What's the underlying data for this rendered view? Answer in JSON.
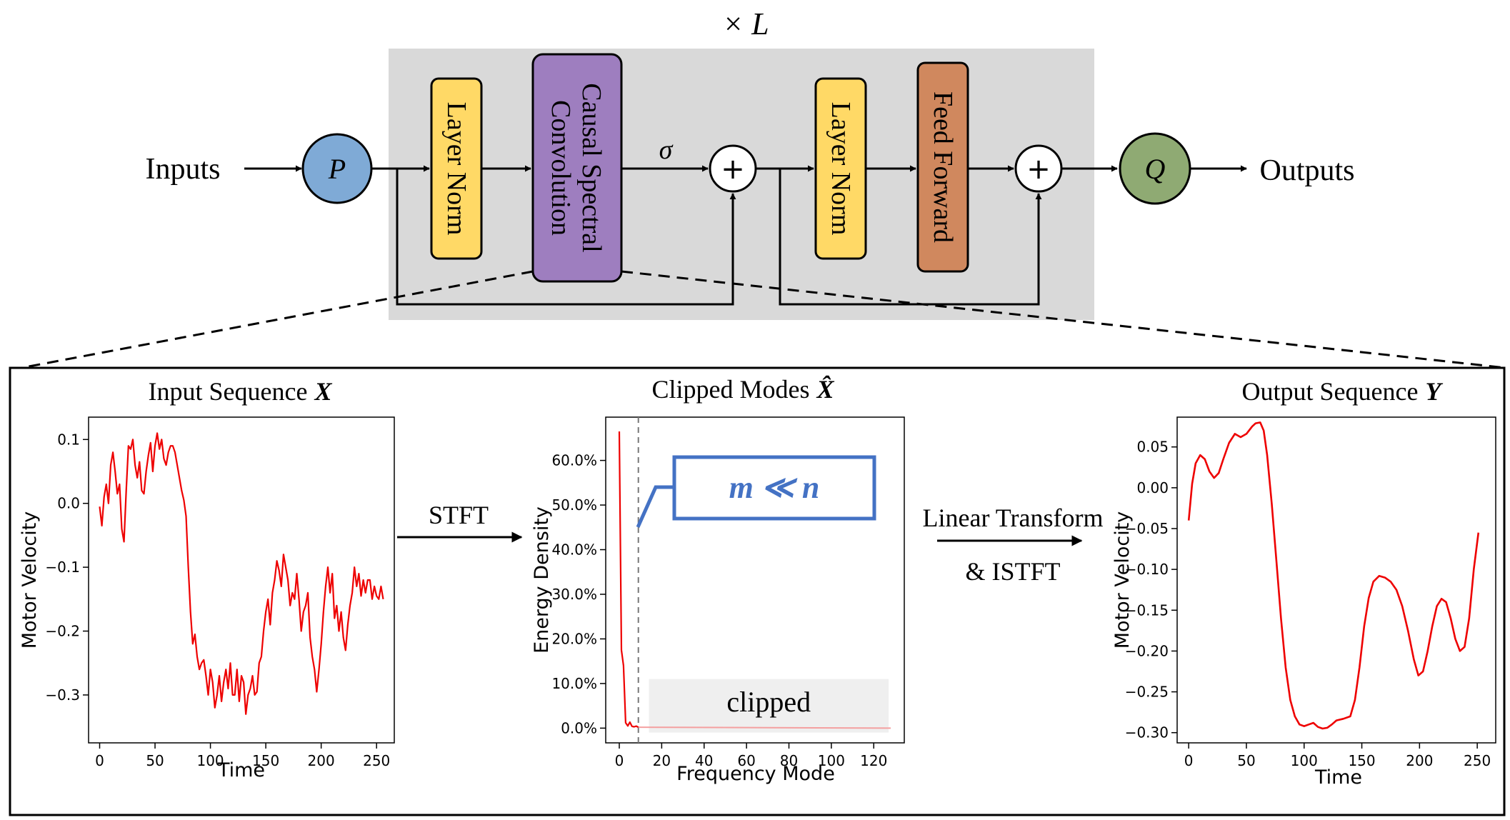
{
  "top": {
    "repeat_label": "× L",
    "inputs_label": "Inputs",
    "outputs_label": "Outputs",
    "p_label": "P",
    "q_label": "Q",
    "sigma_label": "σ",
    "plus_label": "+",
    "layer_norm_1": "Layer Norm",
    "causal_line1": "Causal Spectral",
    "causal_line2": "Convolution",
    "layer_norm_2": "Layer Norm",
    "feed_forward": "Feed Forward"
  },
  "colors": {
    "block_bg": "#d9d9d9",
    "p_fill": "#7faad6",
    "q_fill": "#8faa73",
    "layer_norm": "#ffd966",
    "causal": "#9e7ebf",
    "feed_forward": "#d0885e",
    "curve": "#ee0000",
    "annot_blue": "#4472c4"
  },
  "bottom": {
    "stft_label": "STFT",
    "lin_line1": "Linear Transform",
    "lin_line2": "& ISTFT"
  },
  "chart_data": [
    {
      "type": "line",
      "title": "Input Sequence",
      "title_symbol": "X",
      "xlabel": "Time",
      "ylabel": "Motor Velocity",
      "xlim": [
        -10,
        266
      ],
      "ylim": [
        -0.375,
        0.135
      ],
      "xticks": [
        0,
        50,
        100,
        150,
        200,
        250
      ],
      "yticks": [
        0.1,
        0.0,
        -0.1,
        -0.2,
        -0.3
      ],
      "ytick_labels": [
        "0.1",
        "0.0",
        "−0.1",
        "−0.2",
        "−0.3"
      ],
      "x_start": 0,
      "x_step": 2,
      "values": [
        -0.005,
        -0.035,
        0.01,
        0.03,
        0.0,
        0.06,
        0.08,
        0.05,
        0.015,
        0.03,
        -0.04,
        -0.06,
        0.02,
        0.09,
        0.085,
        0.1,
        0.06,
        0.04,
        0.065,
        0.02,
        0.015,
        0.05,
        0.075,
        0.095,
        0.05,
        0.09,
        0.11,
        0.085,
        0.1,
        0.07,
        0.06,
        0.08,
        0.09,
        0.09,
        0.08,
        0.06,
        0.04,
        0.02,
        0.005,
        -0.02,
        -0.1,
        -0.17,
        -0.22,
        -0.205,
        -0.24,
        -0.26,
        -0.25,
        -0.245,
        -0.27,
        -0.3,
        -0.26,
        -0.28,
        -0.32,
        -0.3,
        -0.27,
        -0.31,
        -0.28,
        -0.26,
        -0.29,
        -0.25,
        -0.3,
        -0.3,
        -0.26,
        -0.31,
        -0.27,
        -0.28,
        -0.33,
        -0.3,
        -0.29,
        -0.27,
        -0.3,
        -0.295,
        -0.25,
        -0.24,
        -0.2,
        -0.17,
        -0.15,
        -0.19,
        -0.14,
        -0.12,
        -0.09,
        -0.105,
        -0.13,
        -0.08,
        -0.1,
        -0.12,
        -0.16,
        -0.14,
        -0.15,
        -0.11,
        -0.15,
        -0.2,
        -0.17,
        -0.16,
        -0.14,
        -0.21,
        -0.24,
        -0.26,
        -0.295,
        -0.26,
        -0.22,
        -0.17,
        -0.13,
        -0.1,
        -0.14,
        -0.11,
        -0.18,
        -0.16,
        -0.2,
        -0.17,
        -0.21,
        -0.23,
        -0.19,
        -0.16,
        -0.14,
        -0.1,
        -0.13,
        -0.11,
        -0.145,
        -0.12,
        -0.14,
        -0.12,
        -0.12,
        -0.15,
        -0.13,
        -0.145,
        -0.15,
        -0.13,
        -0.15
      ]
    },
    {
      "type": "line",
      "title": "Clipped Modes",
      "title_symbol": "X̂",
      "xlabel": "Frequency Mode",
      "ylabel": "Energy Density",
      "xlim": [
        -6.4,
        134.4
      ],
      "ylim": [
        -0.033,
        0.697
      ],
      "xticks": [
        0,
        20,
        40,
        60,
        80,
        100,
        120
      ],
      "yticks": [
        0.0,
        0.1,
        0.2,
        0.3,
        0.4,
        0.5,
        0.6
      ],
      "ytick_labels": [
        "0.0%",
        "10.0%",
        "20.0%",
        "30.0%",
        "40.0%",
        "50.0%",
        "60.0%"
      ],
      "cutoff_mode": 9,
      "clipped_region_x": [
        14,
        127
      ],
      "clipped_region_y": [
        -0.01,
        0.11
      ],
      "clipped_label": "clipped",
      "annotation": "m ≪ n",
      "points_kept": [
        [
          0,
          0.665
        ],
        [
          1,
          0.175
        ],
        [
          2,
          0.14
        ],
        [
          3,
          0.012
        ],
        [
          4,
          0.005
        ],
        [
          5,
          0.0135
        ],
        [
          6,
          0.004
        ],
        [
          7,
          0.003
        ],
        [
          8,
          0.0045
        ],
        [
          9,
          0.002
        ]
      ],
      "points_clipped": [
        [
          9,
          0.002
        ],
        [
          128,
          0.0
        ]
      ]
    },
    {
      "type": "line",
      "title": "Output Sequence",
      "title_symbol": "Y",
      "xlabel": "Time",
      "ylabel": "Motor Velocity",
      "xlim": [
        -10,
        266
      ],
      "ylim": [
        -0.3125,
        0.0865
      ],
      "xticks": [
        0,
        50,
        100,
        150,
        200,
        250
      ],
      "yticks": [
        0.05,
        0.0,
        -0.05,
        -0.1,
        -0.15,
        -0.2,
        -0.25,
        -0.3
      ],
      "ytick_labels": [
        "0.05",
        "0.00",
        "−0.05",
        "−0.10",
        "−0.15",
        "−0.20",
        "−0.25",
        "−0.30"
      ],
      "points": [
        [
          0,
          -0.04
        ],
        [
          3,
          0.005
        ],
        [
          6,
          0.03
        ],
        [
          10,
          0.04
        ],
        [
          14,
          0.035
        ],
        [
          18,
          0.02
        ],
        [
          22,
          0.012
        ],
        [
          26,
          0.018
        ],
        [
          30,
          0.035
        ],
        [
          35,
          0.055
        ],
        [
          40,
          0.066
        ],
        [
          45,
          0.062
        ],
        [
          50,
          0.066
        ],
        [
          55,
          0.075
        ],
        [
          58,
          0.079
        ],
        [
          62,
          0.08
        ],
        [
          65,
          0.07
        ],
        [
          68,
          0.04
        ],
        [
          72,
          -0.02
        ],
        [
          76,
          -0.09
        ],
        [
          80,
          -0.16
        ],
        [
          84,
          -0.22
        ],
        [
          88,
          -0.26
        ],
        [
          92,
          -0.28
        ],
        [
          96,
          -0.29
        ],
        [
          100,
          -0.292
        ],
        [
          104,
          -0.29
        ],
        [
          108,
          -0.288
        ],
        [
          112,
          -0.293
        ],
        [
          116,
          -0.295
        ],
        [
          120,
          -0.294
        ],
        [
          124,
          -0.29
        ],
        [
          128,
          -0.285
        ],
        [
          134,
          -0.283
        ],
        [
          140,
          -0.28
        ],
        [
          144,
          -0.26
        ],
        [
          148,
          -0.22
        ],
        [
          152,
          -0.17
        ],
        [
          156,
          -0.135
        ],
        [
          160,
          -0.115
        ],
        [
          165,
          -0.108
        ],
        [
          170,
          -0.11
        ],
        [
          175,
          -0.115
        ],
        [
          180,
          -0.125
        ],
        [
          185,
          -0.145
        ],
        [
          190,
          -0.175
        ],
        [
          195,
          -0.21
        ],
        [
          199,
          -0.23
        ],
        [
          203,
          -0.225
        ],
        [
          207,
          -0.2
        ],
        [
          211,
          -0.17
        ],
        [
          215,
          -0.145
        ],
        [
          219,
          -0.136
        ],
        [
          223,
          -0.14
        ],
        [
          227,
          -0.16
        ],
        [
          231,
          -0.185
        ],
        [
          235,
          -0.2
        ],
        [
          239,
          -0.195
        ],
        [
          243,
          -0.16
        ],
        [
          247,
          -0.1
        ],
        [
          251,
          -0.055
        ]
      ]
    }
  ]
}
